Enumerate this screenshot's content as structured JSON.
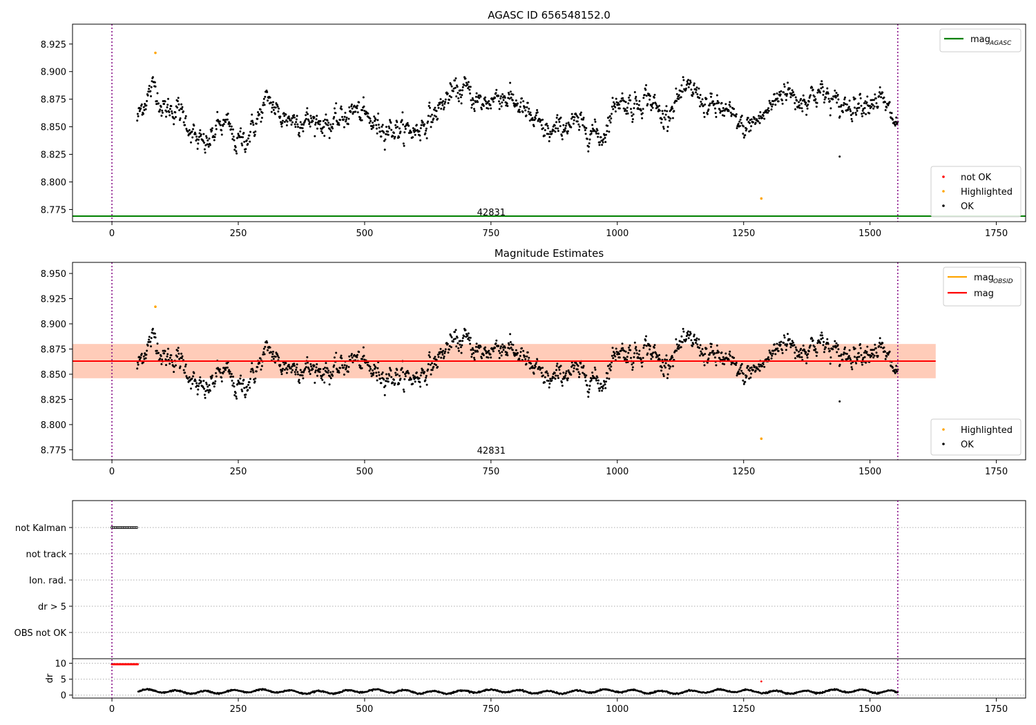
{
  "chart_data": [
    {
      "type": "scatter",
      "title": "AGASC ID 656548152.0",
      "xlabel": "",
      "ylabel": "",
      "xlim": [
        -78,
        1808
      ],
      "ylim": [
        8.764,
        8.943
      ],
      "xticks": [
        0,
        250,
        500,
        750,
        1000,
        1250,
        1500,
        1750
      ],
      "yticks": [
        8.775,
        8.8,
        8.825,
        8.85,
        8.875,
        8.9,
        8.925
      ],
      "ytick_labels": [
        "8.775",
        "8.800",
        "8.825",
        "8.850",
        "8.875",
        "8.900",
        "8.925"
      ],
      "grid": false,
      "vlines": [
        0,
        1555
      ],
      "hlines": [
        {
          "name": "mag_AGASC",
          "value": 8.769,
          "color": "#008000"
        }
      ],
      "annotations": [
        {
          "text": "42831",
          "x": 778
        }
      ],
      "legend_lines": [
        {
          "name": "mag",
          "sub": "AGASC",
          "color": "#008000"
        }
      ],
      "legend_points": [
        {
          "name": "not OK",
          "color": "#ff0000"
        },
        {
          "name": "Highlighted",
          "color": "#ffa500"
        },
        {
          "name": "OK",
          "color": "#000000"
        }
      ],
      "series": [
        {
          "name": "OK",
          "color": "#000000",
          "x_range": [
            50,
            1555
          ],
          "n_points": 1500,
          "values_description": "mag estimates ~8.82–8.905",
          "trend": [
            [
              50,
              8.857
            ],
            [
              65,
              8.874
            ],
            [
              85,
              8.888
            ],
            [
              100,
              8.866
            ],
            [
              130,
              8.866
            ],
            [
              150,
              8.853
            ],
            [
              170,
              8.835
            ],
            [
              190,
              8.834
            ],
            [
              210,
              8.851
            ],
            [
              230,
              8.851
            ],
            [
              245,
              8.835
            ],
            [
              270,
              8.842
            ],
            [
              290,
              8.858
            ],
            [
              310,
              8.876
            ],
            [
              330,
              8.86
            ],
            [
              360,
              8.857
            ],
            [
              400,
              8.855
            ],
            [
              440,
              8.852
            ],
            [
              480,
              8.866
            ],
            [
              520,
              8.852
            ],
            [
              560,
              8.848
            ],
            [
              600,
              8.846
            ],
            [
              640,
              8.862
            ],
            [
              670,
              8.88
            ],
            [
              700,
              8.884
            ],
            [
              730,
              8.87
            ],
            [
              770,
              8.879
            ],
            [
              800,
              8.872
            ],
            [
              840,
              8.852
            ],
            [
              870,
              8.843
            ],
            [
              900,
              8.853
            ],
            [
              940,
              8.85
            ],
            [
              970,
              8.84
            ],
            [
              1000,
              8.876
            ],
            [
              1030,
              8.868
            ],
            [
              1060,
              8.879
            ],
            [
              1090,
              8.858
            ],
            [
              1120,
              8.876
            ],
            [
              1150,
              8.884
            ],
            [
              1180,
              8.868
            ],
            [
              1210,
              8.866
            ],
            [
              1250,
              8.848
            ],
            [
              1290,
              8.86
            ],
            [
              1330,
              8.885
            ],
            [
              1360,
              8.873
            ],
            [
              1400,
              8.882
            ],
            [
              1440,
              8.868
            ],
            [
              1480,
              8.872
            ],
            [
              1520,
              8.876
            ],
            [
              1555,
              8.85
            ]
          ],
          "outliers": [
            [
              1440,
              8.823
            ]
          ]
        },
        {
          "name": "Highlighted",
          "color": "#ffa500",
          "x": [
            86,
            1285
          ],
          "y": [
            8.917,
            8.785
          ]
        }
      ]
    },
    {
      "type": "scatter",
      "title": "Magnitude Estimates",
      "xlabel": "",
      "ylabel": "",
      "xlim": [
        -78,
        1808
      ],
      "ylim": [
        8.765,
        8.961
      ],
      "xticks": [
        0,
        250,
        500,
        750,
        1000,
        1250,
        1500,
        1750
      ],
      "yticks": [
        8.775,
        8.8,
        8.825,
        8.85,
        8.875,
        8.9,
        8.925,
        8.95
      ],
      "ytick_labels": [
        "8.775",
        "8.800",
        "8.825",
        "8.850",
        "8.875",
        "8.900",
        "8.925",
        "8.950"
      ],
      "grid": false,
      "vlines": [
        0,
        1555
      ],
      "hlines": [
        {
          "name": "mag",
          "value": 8.863,
          "color": "#ff0000"
        }
      ],
      "bands": [
        {
          "ymin": 8.846,
          "ymax": 8.88,
          "color": "#ffc0cb",
          "opacity": 0.45
        },
        {
          "ymin": 8.846,
          "ymax": 8.88,
          "x_range": [
            -78,
            1630
          ],
          "color": "#ffa060",
          "opacity": 0.35
        }
      ],
      "annotations": [
        {
          "text": "42831",
          "x": 778
        }
      ],
      "legend_lines": [
        {
          "name": "mag",
          "sub": "OBSID",
          "color": "#ffa500"
        },
        {
          "name": "mag",
          "sub": "",
          "color": "#ff0000"
        }
      ],
      "legend_points": [
        {
          "name": "Highlighted",
          "color": "#ffa500"
        },
        {
          "name": "OK",
          "color": "#000000"
        }
      ],
      "series": [
        {
          "name": "OK",
          "color": "#000000",
          "x_range": [
            50,
            1555
          ],
          "n_points": 1500,
          "values_description": "same as upper panel",
          "trend_ref": 0,
          "outliers": [
            [
              1440,
              8.823
            ]
          ]
        },
        {
          "name": "Highlighted",
          "color": "#ffa500",
          "x": [
            86,
            1285
          ],
          "y": [
            8.917,
            8.786
          ]
        }
      ]
    },
    {
      "type": "scatter",
      "title": "",
      "xlim": [
        -78,
        1808
      ],
      "xticks": [
        0,
        250,
        500,
        750,
        1000,
        1250,
        1500,
        1750
      ],
      "flag_labels": [
        "not Kalman",
        "not track",
        "Ion. rad.",
        "dr > 5",
        "OBS not OK"
      ],
      "flag_series": [
        {
          "name": "not Kalman",
          "x_range": [
            0,
            52
          ],
          "color": "#000000"
        }
      ],
      "dr": {
        "ylabel": "dr",
        "ylim": [
          -0.5,
          11
        ],
        "yticks": [
          0,
          5,
          10
        ],
        "red_points": {
          "x_range": [
            0,
            52
          ],
          "y": 9.7,
          "extra": [
            [
              1285,
              4.3
            ]
          ]
        },
        "black_points": {
          "x_range": [
            52,
            1555
          ],
          "y_range": [
            0.3,
            2.0
          ]
        }
      },
      "vlines": [
        0,
        1555
      ]
    }
  ]
}
